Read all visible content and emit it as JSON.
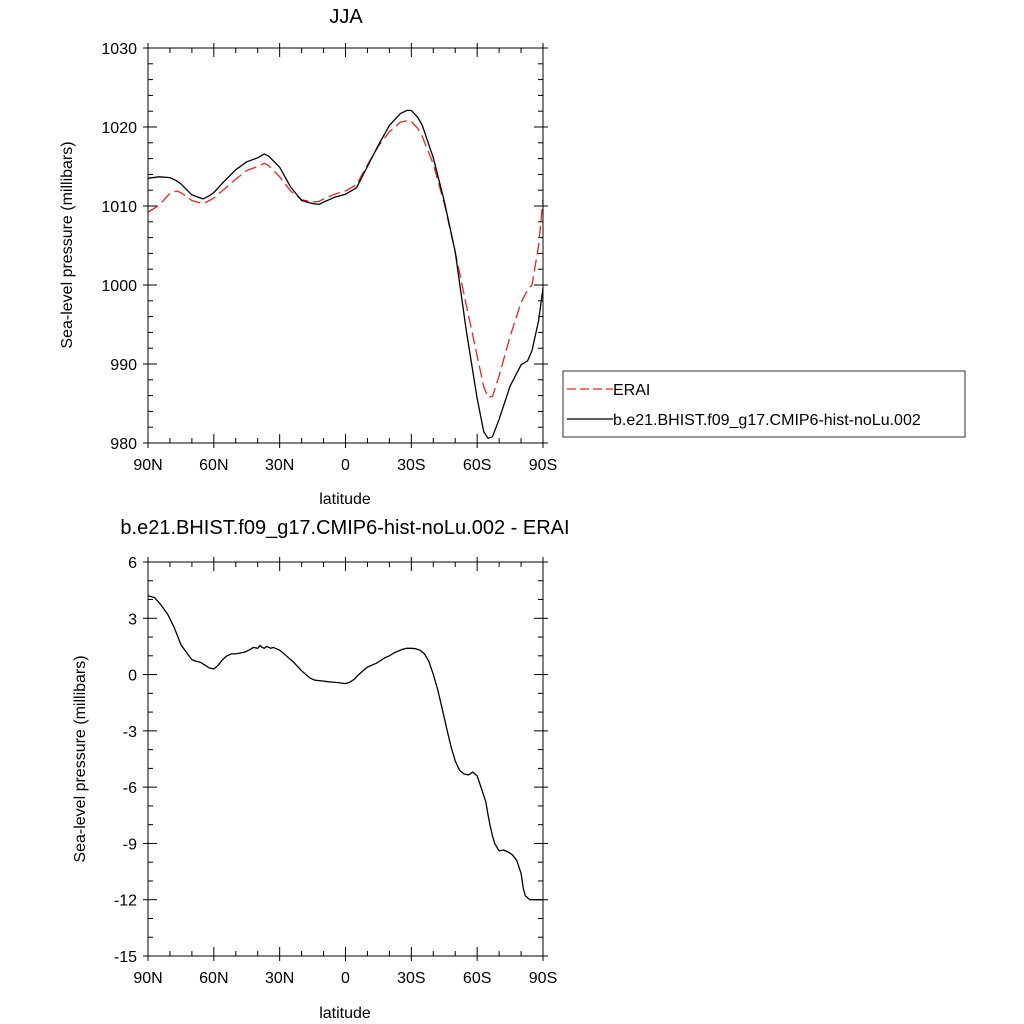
{
  "chart_data": [
    {
      "type": "line",
      "title": "JJA",
      "xlabel": "latitude",
      "ylabel": "Sea-level pressure (millibars)",
      "xlim": [
        -90,
        90
      ],
      "ylim": [
        980,
        1030
      ],
      "x_ticks": [
        {
          "value": -90,
          "label": "90N"
        },
        {
          "value": -60,
          "label": "60N"
        },
        {
          "value": -30,
          "label": "30N"
        },
        {
          "value": 0,
          "label": "0"
        },
        {
          "value": 30,
          "label": "30S"
        },
        {
          "value": 60,
          "label": "60S"
        },
        {
          "value": 90,
          "label": "90S"
        }
      ],
      "y_ticks": [
        980,
        990,
        1000,
        1010,
        1020,
        1030
      ],
      "grid": false,
      "legend_position": "right",
      "series": [
        {
          "name": "ERAI",
          "color": "#e8251f",
          "dash": "dashed",
          "x": [
            -90,
            -85,
            -80,
            -77,
            -75,
            -70,
            -65,
            -62,
            -60,
            -55,
            -50,
            -45,
            -40,
            -37,
            -35,
            -30,
            -25,
            -20,
            -15,
            -12,
            -10,
            -5,
            0,
            5,
            10,
            15,
            20,
            25,
            28,
            30,
            33,
            35,
            40,
            45,
            50,
            55,
            60,
            63,
            65,
            67,
            70,
            75,
            80,
            83,
            85,
            88,
            90
          ],
          "y": [
            1009.2,
            1010.1,
            1011.6,
            1011.9,
            1011.7,
            1010.7,
            1010.3,
            1010.7,
            1011,
            1012.2,
            1013.4,
            1014.5,
            1015,
            1015.4,
            1015.1,
            1013.7,
            1011.9,
            1010.8,
            1010.5,
            1010.6,
            1010.9,
            1011.5,
            1011.9,
            1012.7,
            1015.2,
            1017.6,
            1019.4,
            1020.6,
            1020.8,
            1020.7,
            1019.8,
            1018.8,
            1015.3,
            1010.3,
            1004.2,
            997.5,
            991,
            987.1,
            985.8,
            985.9,
            988.5,
            993.5,
            997.8,
            999.4,
            1000,
            1005,
            1010.8
          ]
        },
        {
          "name": "b.e21.BHIST.f09_g17.CMIP6-hist-noLu.002",
          "color": "#000000",
          "dash": "solid",
          "x": [
            -90,
            -85,
            -80,
            -77,
            -75,
            -70,
            -65,
            -62,
            -60,
            -55,
            -50,
            -45,
            -40,
            -37,
            -35,
            -30,
            -25,
            -20,
            -15,
            -12,
            -10,
            -5,
            0,
            5,
            10,
            15,
            20,
            25,
            28,
            30,
            33,
            35,
            40,
            45,
            50,
            55,
            60,
            63,
            65,
            67,
            70,
            75,
            80,
            83,
            85,
            88,
            90
          ],
          "y": [
            1013.5,
            1013.7,
            1013.6,
            1013.2,
            1012.8,
            1011.4,
            1010.9,
            1011.3,
            1011.7,
            1013.2,
            1014.6,
            1015.6,
            1016.1,
            1016.6,
            1016.3,
            1014.9,
            1012.4,
            1010.7,
            1010.3,
            1010.2,
            1010.5,
            1011.1,
            1011.5,
            1012.3,
            1015,
            1017.7,
            1020.2,
            1021.7,
            1022.1,
            1022.1,
            1021.2,
            1020.2,
            1016.1,
            1010.6,
            1004.2,
            994.3,
            985.6,
            981.4,
            980.6,
            980.8,
            983,
            987.2,
            989.9,
            990.4,
            991.7,
            995.5,
            999.6
          ]
        }
      ]
    },
    {
      "type": "line",
      "title": "b.e21.BHIST.f09_g17.CMIP6-hist-noLu.002 - ERAI",
      "xlabel": "latitude",
      "ylabel": "Sea-level pressure (millibars)",
      "xlim": [
        -90,
        90
      ],
      "ylim": [
        -15,
        6
      ],
      "x_ticks": [
        {
          "value": -90,
          "label": "90N"
        },
        {
          "value": -60,
          "label": "60N"
        },
        {
          "value": -30,
          "label": "30N"
        },
        {
          "value": 0,
          "label": "0"
        },
        {
          "value": 30,
          "label": "30S"
        },
        {
          "value": 60,
          "label": "60S"
        },
        {
          "value": 90,
          "label": "90S"
        }
      ],
      "y_ticks": [
        -15,
        -12,
        -9,
        -6,
        -3,
        0,
        3,
        6
      ],
      "grid": false,
      "series": [
        {
          "color": "#000000",
          "dash": "solid",
          "x": [
            -90,
            -87,
            -84,
            -81,
            -78,
            -75,
            -72,
            -70,
            -68,
            -66,
            -64,
            -62,
            -60,
            -58,
            -56,
            -54,
            -52,
            -50,
            -48,
            -46,
            -44,
            -42,
            -40,
            -39,
            -38,
            -37,
            -36,
            -35,
            -34,
            -33,
            -32,
            -30,
            -28,
            -26,
            -24,
            -22,
            -20,
            -18,
            -16,
            -14,
            -12,
            -10,
            -8,
            -6,
            -4,
            -2,
            0,
            2,
            4,
            6,
            8,
            10,
            12,
            14,
            16,
            18,
            20,
            22,
            24,
            26,
            28,
            30,
            32,
            34,
            36,
            38,
            40,
            42,
            44,
            46,
            48,
            50,
            52,
            54,
            56,
            58,
            60,
            62,
            64,
            65,
            66,
            67,
            68,
            69,
            70,
            72,
            74,
            76,
            78,
            80,
            81,
            82,
            83,
            84,
            85,
            86,
            87,
            88,
            89,
            90
          ],
          "y": [
            4.2,
            4.1,
            3.7,
            3.2,
            2.5,
            1.6,
            1.1,
            0.8,
            0.7,
            0.65,
            0.5,
            0.35,
            0.3,
            0.5,
            0.8,
            1.0,
            1.1,
            1.1,
            1.15,
            1.2,
            1.3,
            1.45,
            1.4,
            1.55,
            1.45,
            1.4,
            1.5,
            1.45,
            1.4,
            1.45,
            1.4,
            1.3,
            1.1,
            0.9,
            0.7,
            0.45,
            0.2,
            0.0,
            -0.2,
            -0.3,
            -0.32,
            -0.35,
            -0.38,
            -0.4,
            -0.42,
            -0.45,
            -0.48,
            -0.4,
            -0.25,
            0.0,
            0.2,
            0.4,
            0.5,
            0.6,
            0.75,
            0.9,
            1.0,
            1.15,
            1.25,
            1.35,
            1.4,
            1.4,
            1.38,
            1.3,
            1.1,
            0.7,
            0.0,
            -0.8,
            -1.8,
            -2.8,
            -3.8,
            -4.6,
            -5.1,
            -5.3,
            -5.35,
            -5.2,
            -5.4,
            -6.1,
            -6.8,
            -7.5,
            -8.1,
            -8.6,
            -9.0,
            -9.2,
            -9.4,
            -9.35,
            -9.45,
            -9.6,
            -9.9,
            -10.6,
            -11.4,
            -11.8,
            -11.9,
            -12.0,
            -12.0,
            -12.0,
            -12.0,
            -12.0,
            -12.0,
            -12.0
          ]
        }
      ]
    }
  ]
}
